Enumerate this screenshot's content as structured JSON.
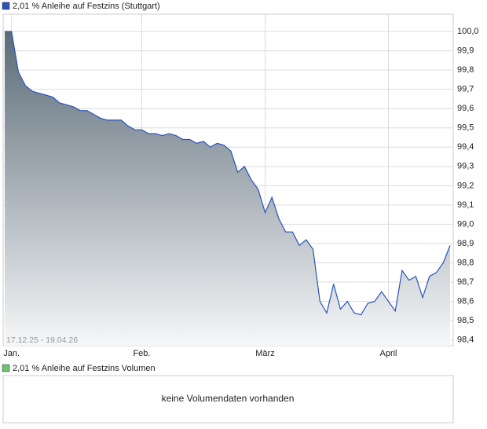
{
  "chart_data": {
    "type": "area",
    "title": "2,01 % Anleihe auf Festzins (Stuttgart)",
    "date_range": "17.12.25 - 19.04.26",
    "categories": [
      null,
      "Jan.",
      null,
      null,
      null,
      null,
      null,
      null,
      null,
      null,
      null,
      null,
      null,
      null,
      null,
      null,
      null,
      null,
      null,
      null,
      "Feb.",
      null,
      null,
      null,
      null,
      null,
      null,
      null,
      null,
      null,
      null,
      null,
      null,
      null,
      null,
      null,
      null,
      null,
      "März",
      null,
      null,
      null,
      null,
      null,
      null,
      null,
      null,
      null,
      null,
      null,
      null,
      null,
      null,
      null,
      null,
      null,
      "April",
      null,
      null,
      null,
      null,
      null,
      null,
      null,
      null,
      null
    ],
    "series": [
      {
        "name": "2,01 % Anleihe auf Festzins (Stuttgart)",
        "color": "#2a52be",
        "values": [
          100.0,
          100.0,
          99.79,
          99.72,
          99.69,
          99.68,
          99.67,
          99.66,
          99.63,
          99.62,
          99.61,
          99.59,
          99.59,
          99.57,
          99.55,
          99.54,
          99.54,
          99.54,
          99.51,
          99.49,
          99.49,
          99.47,
          99.47,
          99.46,
          99.47,
          99.46,
          99.44,
          99.44,
          99.42,
          99.43,
          99.4,
          99.42,
          99.41,
          99.38,
          99.27,
          99.3,
          99.23,
          99.18,
          99.06,
          99.14,
          99.03,
          98.96,
          98.96,
          98.89,
          98.92,
          98.87,
          98.6,
          98.54,
          98.69,
          98.56,
          98.6,
          98.54,
          98.53,
          98.59,
          98.6,
          98.65,
          98.6,
          98.55,
          98.76,
          98.71,
          98.73,
          98.62,
          98.73,
          98.75,
          98.8,
          98.89
        ]
      }
    ],
    "ylim": [
      98.37,
      100.09
    ],
    "yticks": [
      {
        "value": 98.4,
        "label": "98,4"
      },
      {
        "value": 98.5,
        "label": "98,5"
      },
      {
        "value": 98.6,
        "label": "98,6"
      },
      {
        "value": 98.7,
        "label": "98,7"
      },
      {
        "value": 98.8,
        "label": "98,8"
      },
      {
        "value": 98.9,
        "label": "98,9"
      },
      {
        "value": 99.0,
        "label": "99,0"
      },
      {
        "value": 99.1,
        "label": "99,1"
      },
      {
        "value": 99.2,
        "label": "99,2"
      },
      {
        "value": 99.3,
        "label": "99,3"
      },
      {
        "value": 99.4,
        "label": "99,4"
      },
      {
        "value": 99.5,
        "label": "99,5"
      },
      {
        "value": 99.6,
        "label": "99,6"
      },
      {
        "value": 99.7,
        "label": "99,7"
      },
      {
        "value": 99.8,
        "label": "99,8"
      },
      {
        "value": 99.9,
        "label": "99,9"
      },
      {
        "value": 100.0,
        "label": "100,0"
      }
    ],
    "grid": true
  },
  "volume_panel": {
    "legend": "2,01 % Anleihe auf Festzins Volumen",
    "message": "keine Volumendaten vorhanden"
  }
}
